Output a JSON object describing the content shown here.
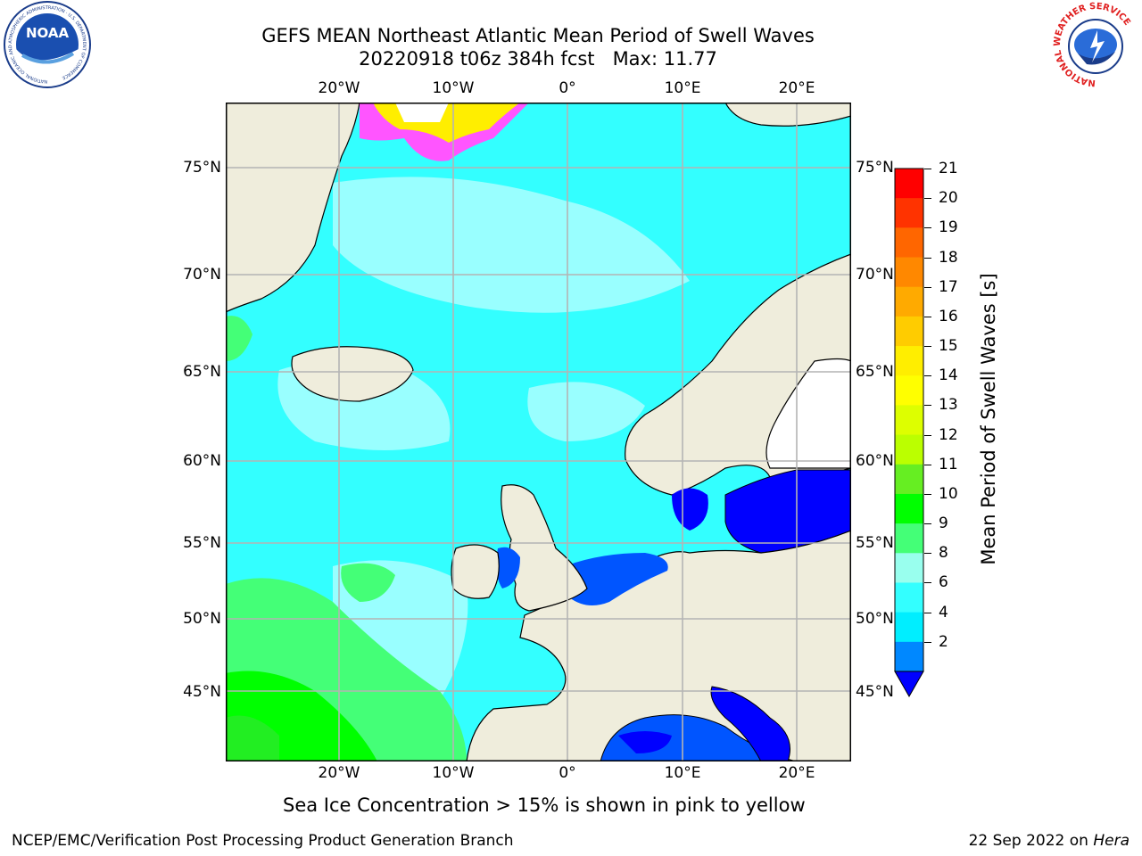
{
  "header": {
    "title_line1": "GEFS MEAN Northeast Atlantic Mean Period of Swell Waves",
    "title_line2": "20220918 t06z 384h fcst   Max: 11.77"
  },
  "logos": {
    "left": "NOAA",
    "left_ring": "NATIONAL OCEANIC AND ATMOSPHERIC ADMINISTRATION · U.S. DEPARTMENT OF COMMERCE",
    "right_ring": "NATIONAL WEATHER SERVICE"
  },
  "map": {
    "lon_ticks": [
      "20°W",
      "10°W",
      "0°",
      "10°E",
      "20°E"
    ],
    "lat_ticks": [
      "75°N",
      "70°N",
      "65°N",
      "60°N",
      "55°N",
      "50°N",
      "45°N"
    ],
    "ice_color": "#ff55ff",
    "land_color": "#efeddc",
    "ocean_base": "#33ffff"
  },
  "colorbar": {
    "title": "Mean Period of Swell Waves [s]",
    "labels": [
      "21",
      "20",
      "19",
      "18",
      "17",
      "16",
      "15",
      "14",
      "13",
      "12",
      "11",
      "10",
      "9",
      "8",
      "6",
      "4",
      "2"
    ],
    "colors": [
      "#ff0000",
      "#ff3300",
      "#ff6600",
      "#ff8800",
      "#ffaa00",
      "#ffcc00",
      "#ffee00",
      "#ffff00",
      "#ddff00",
      "#bbff00",
      "#66ee22",
      "#00ff00",
      "#44ff77",
      "#99ffee",
      "#33ffff",
      "#00eeff",
      "#0088ff"
    ],
    "extend_color": "#0000ff"
  },
  "caption": "Sea Ice Concentration > 15% is shown in pink to yellow",
  "footer": {
    "left": "NCEP/EMC/Verification Post Processing Product Generation Branch",
    "right_date": "22 Sep 2022 on ",
    "right_host": "Hera"
  }
}
